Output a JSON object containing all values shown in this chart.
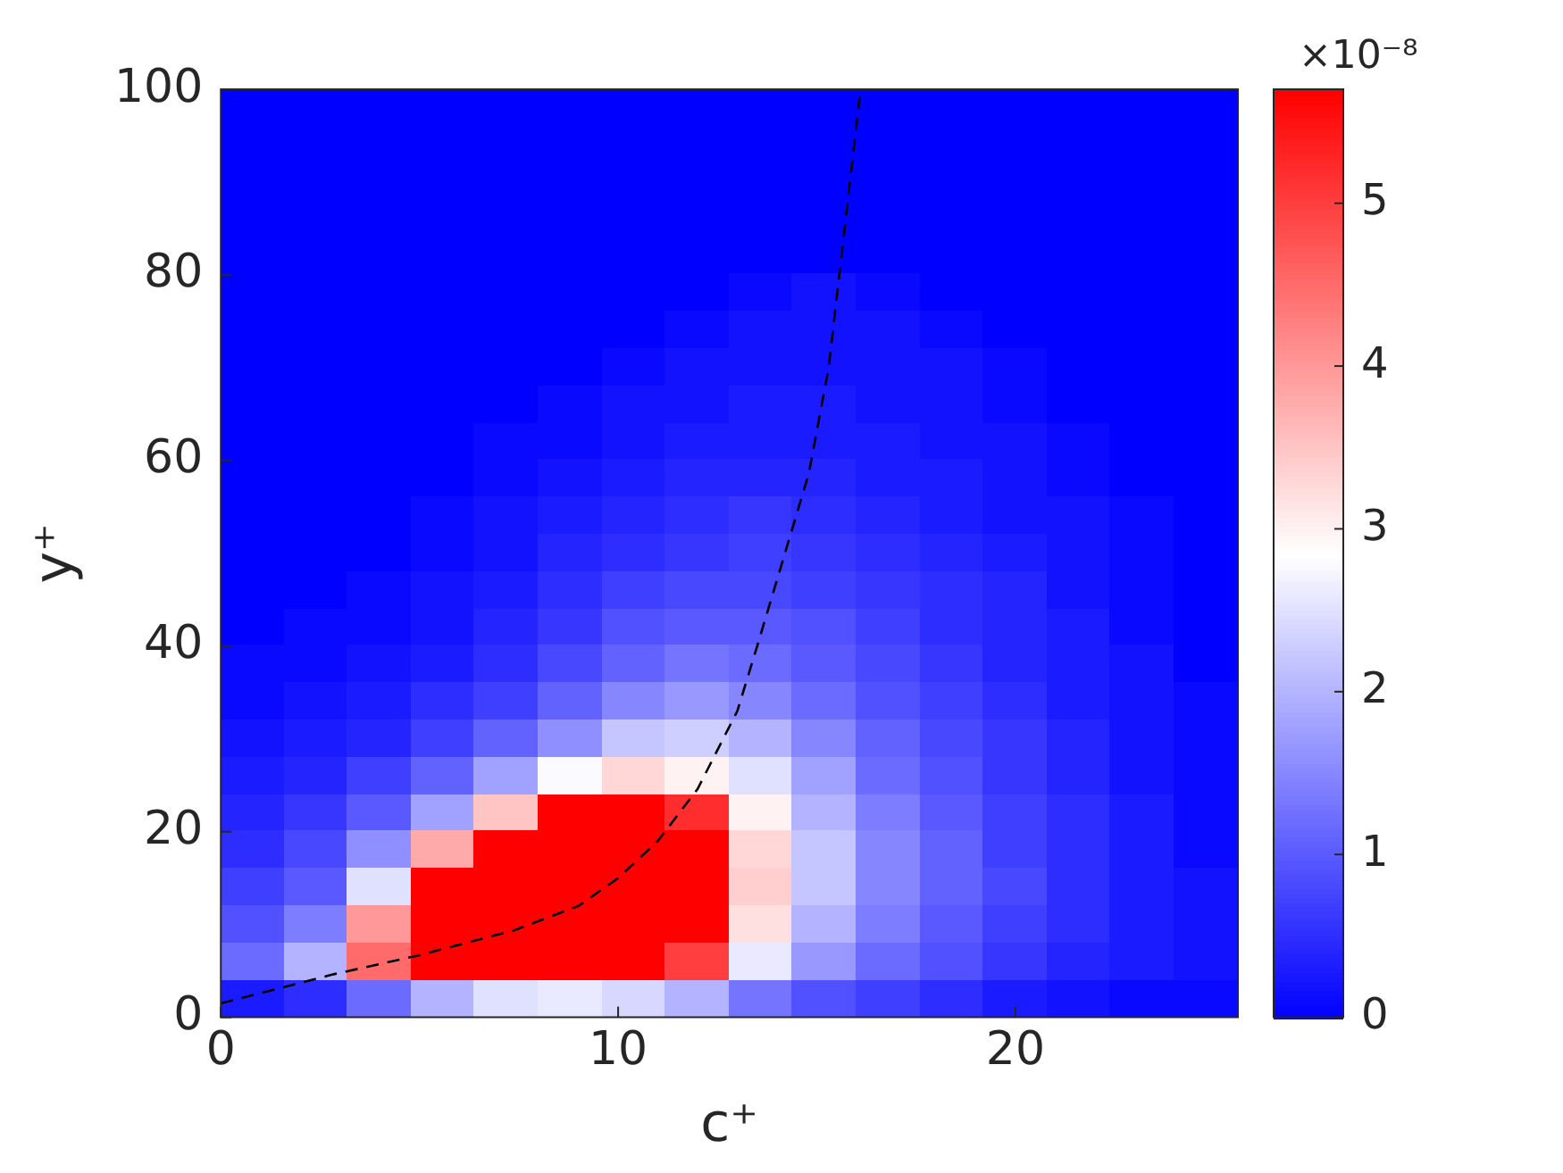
{
  "chart_data": {
    "type": "heatmap",
    "xlabel": "c⁺",
    "ylabel": "y⁺",
    "clabel": "×10⁻⁸",
    "xlim": [
      0,
      25.6
    ],
    "xticks": [
      0,
      10,
      20
    ],
    "ylim": [
      0,
      100
    ],
    "yticks": [
      0,
      20,
      40,
      60,
      80,
      100
    ],
    "clim": [
      0,
      5.7
    ],
    "cticks": [
      0,
      1,
      2,
      3,
      4,
      5
    ],
    "x": [
      0.8,
      2.4,
      4.0,
      5.6,
      7.2,
      8.8,
      10.4,
      12.0,
      13.6,
      15.2,
      16.8,
      18.4,
      20.0,
      21.6,
      23.2,
      24.8
    ],
    "y": [
      98,
      94,
      90,
      86,
      82,
      78,
      74,
      70,
      66,
      62,
      58,
      54,
      50,
      46,
      42,
      38,
      34,
      30,
      26,
      22,
      18,
      14,
      10,
      6,
      2
    ],
    "cells": [
      [
        0,
        0,
        0,
        0,
        0,
        0,
        0,
        0,
        0,
        0,
        0,
        0,
        0,
        0,
        0,
        0
      ],
      [
        0,
        0,
        0,
        0,
        0,
        0,
        0,
        0,
        0,
        0,
        0,
        0,
        0,
        0,
        0,
        0
      ],
      [
        0,
        0,
        0,
        0,
        0,
        0,
        0,
        0,
        0,
        0,
        0,
        0,
        0,
        0,
        0,
        0
      ],
      [
        0,
        0,
        0,
        0,
        0,
        0,
        0,
        0,
        0,
        0,
        0,
        0,
        0,
        0,
        0,
        0
      ],
      [
        0,
        0,
        0,
        0,
        0,
        0,
        0,
        0,
        0,
        0,
        0,
        0,
        0,
        0,
        0,
        0
      ],
      [
        0,
        0,
        0,
        0,
        0,
        0,
        0,
        0,
        0.1,
        0.2,
        0.1,
        0,
        0,
        0,
        0,
        0
      ],
      [
        0,
        0,
        0,
        0,
        0,
        0,
        0,
        0.1,
        0.2,
        0.2,
        0.2,
        0.1,
        0,
        0,
        0,
        0
      ],
      [
        0,
        0,
        0,
        0,
        0,
        0,
        0.1,
        0.2,
        0.2,
        0.2,
        0.2,
        0.2,
        0.1,
        0,
        0,
        0
      ],
      [
        0,
        0,
        0,
        0,
        0,
        0.1,
        0.2,
        0.2,
        0.3,
        0.3,
        0.2,
        0.2,
        0.1,
        0,
        0,
        0
      ],
      [
        0,
        0,
        0,
        0,
        0.1,
        0.1,
        0.2,
        0.3,
        0.3,
        0.3,
        0.3,
        0.2,
        0.2,
        0.1,
        0,
        0
      ],
      [
        0,
        0,
        0,
        0,
        0.1,
        0.2,
        0.3,
        0.4,
        0.4,
        0.4,
        0.3,
        0.3,
        0.2,
        0.1,
        0,
        0
      ],
      [
        0,
        0,
        0,
        0.1,
        0.2,
        0.3,
        0.4,
        0.5,
        0.6,
        0.5,
        0.4,
        0.3,
        0.2,
        0.2,
        0.1,
        0
      ],
      [
        0,
        0,
        0,
        0.1,
        0.2,
        0.4,
        0.5,
        0.6,
        0.7,
        0.6,
        0.5,
        0.4,
        0.3,
        0.2,
        0.1,
        0
      ],
      [
        0,
        0,
        0.1,
        0.2,
        0.3,
        0.5,
        0.7,
        0.8,
        0.8,
        0.7,
        0.6,
        0.5,
        0.4,
        0.2,
        0.1,
        0
      ],
      [
        0,
        0.1,
        0.1,
        0.2,
        0.4,
        0.6,
        0.9,
        1.0,
        1.0,
        0.9,
        0.7,
        0.5,
        0.4,
        0.3,
        0.1,
        0
      ],
      [
        0.1,
        0.1,
        0.2,
        0.3,
        0.5,
        0.8,
        1.1,
        1.3,
        1.2,
        1.0,
        0.8,
        0.6,
        0.4,
        0.3,
        0.2,
        0
      ],
      [
        0.1,
        0.2,
        0.3,
        0.5,
        0.7,
        1.1,
        1.5,
        1.7,
        1.5,
        1.2,
        0.9,
        0.7,
        0.5,
        0.3,
        0.2,
        0.1
      ],
      [
        0.2,
        0.3,
        0.4,
        0.7,
        1.1,
        1.6,
        2.2,
        2.3,
        2.0,
        1.5,
        1.1,
        0.8,
        0.6,
        0.4,
        0.2,
        0.1
      ],
      [
        0.3,
        0.4,
        0.7,
        1.1,
        1.8,
        2.8,
        3.3,
        3.0,
        2.5,
        1.8,
        1.2,
        0.9,
        0.6,
        0.4,
        0.2,
        0.1
      ],
      [
        0.4,
        0.6,
        1.0,
        1.8,
        3.5,
        5.7,
        5.7,
        5.2,
        3.0,
        2.0,
        1.4,
        1.0,
        0.7,
        0.5,
        0.3,
        0.1
      ],
      [
        0.5,
        0.8,
        1.6,
        3.8,
        5.7,
        5.7,
        5.7,
        5.7,
        3.3,
        2.2,
        1.5,
        1.1,
        0.7,
        0.5,
        0.3,
        0.1
      ],
      [
        0.7,
        1.0,
        2.5,
        5.7,
        5.7,
        5.7,
        5.7,
        5.7,
        3.4,
        2.2,
        1.5,
        1.1,
        0.8,
        0.5,
        0.3,
        0.2
      ],
      [
        0.9,
        1.4,
        4.0,
        5.7,
        5.7,
        5.7,
        5.7,
        5.7,
        3.2,
        2.0,
        1.4,
        1.0,
        0.7,
        0.5,
        0.3,
        0.2
      ],
      [
        1.2,
        2.0,
        4.5,
        5.7,
        5.7,
        5.7,
        5.7,
        5.0,
        2.6,
        1.7,
        1.2,
        0.9,
        0.6,
        0.4,
        0.3,
        0.2
      ],
      [
        0.3,
        0.5,
        1.2,
        2.0,
        2.5,
        2.6,
        2.4,
        2.0,
        1.3,
        0.9,
        0.7,
        0.5,
        0.3,
        0.2,
        0.1,
        0.1
      ]
    ],
    "series": [
      {
        "type": "line",
        "color": "#000000",
        "line_style": "dashed",
        "x": [
          0,
          2.8,
          5,
          7.4,
          9,
          10,
          11,
          12,
          13,
          13.5,
          14.2,
          14.8,
          15.3,
          15.7,
          16.1
        ],
        "values": [
          1.5,
          4.6,
          6.7,
          9.4,
          12,
          15,
          19,
          24.6,
          33,
          40,
          50,
          58.6,
          70,
          85,
          100
        ]
      }
    ],
    "grid": false,
    "legend": false
  }
}
